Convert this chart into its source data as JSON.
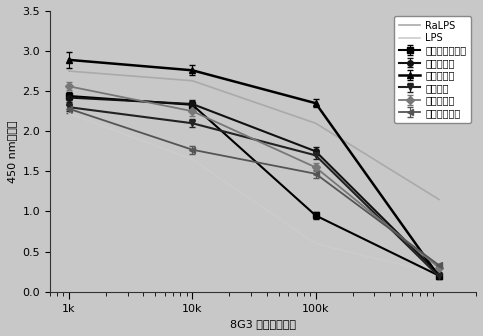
{
  "x_values": [
    1000,
    10000,
    100000,
    1000000
  ],
  "x_tick_positions": [
    1000,
    10000,
    100000
  ],
  "x_tick_labels": [
    "1k",
    "10k",
    "100k"
  ],
  "x_label": "8G3 抗体稀释倍数",
  "y_label": "450 nm吸光值",
  "ylim": [
    0.0,
    3.5
  ],
  "yticks": [
    0.0,
    0.5,
    1.0,
    1.5,
    2.0,
    2.5,
    3.0,
    3.5
  ],
  "background_color": "#c8c8c8",
  "plot_bg_color": "#c8c8c8",
  "series": [
    {
      "label": "甲型副伤寒沙门",
      "color": "#000000",
      "marker": "s",
      "linewidth": 1.5,
      "markersize": 4,
      "values": [
        2.44,
        2.33,
        0.95,
        0.2
      ],
      "errors": [
        0.05,
        0.05,
        0.04,
        0.01
      ]
    },
    {
      "label": "鼠伤寒沙门",
      "color": "#111111",
      "marker": "o",
      "linewidth": 1.5,
      "markersize": 4,
      "values": [
        2.42,
        2.34,
        1.75,
        0.22
      ],
      "errors": [
        0.05,
        0.05,
        0.05,
        0.01
      ]
    },
    {
      "label": "汤普逐沙门",
      "color": "#000000",
      "marker": "^",
      "linewidth": 1.8,
      "markersize": 5,
      "values": [
        2.89,
        2.76,
        2.35,
        0.19
      ],
      "errors": [
        0.1,
        0.06,
        0.05,
        0.01
      ]
    },
    {
      "label": "肠炎沙门",
      "color": "#222222",
      "marker": "v",
      "linewidth": 1.5,
      "markersize": 4,
      "values": [
        2.3,
        2.1,
        1.7,
        0.19
      ],
      "errors": [
        0.05,
        0.05,
        0.05,
        0.01
      ]
    },
    {
      "label": "鸭沙门沙门",
      "color": "#777777",
      "marker": "D",
      "linewidth": 1.3,
      "markersize": 4,
      "values": [
        2.56,
        2.25,
        1.55,
        0.3
      ],
      "errors": [
        0.05,
        0.06,
        0.05,
        0.01
      ]
    },
    {
      "label": "亚利桑那沙门",
      "color": "#555555",
      "marker": "<",
      "linewidth": 1.3,
      "markersize": 4,
      "values": [
        2.28,
        1.77,
        1.47,
        0.33
      ],
      "errors": [
        0.05,
        0.05,
        0.05,
        0.01
      ]
    },
    {
      "label": "RaLPS",
      "color": "#aaaaaa",
      "marker": "None",
      "linewidth": 1.2,
      "markersize": 0,
      "values": [
        2.75,
        2.63,
        2.1,
        1.15
      ],
      "errors": [
        0.0,
        0.0,
        0.0,
        0.0
      ]
    },
    {
      "label": "LPS",
      "color": "#cccccc",
      "marker": "None",
      "linewidth": 1.2,
      "markersize": 0,
      "values": [
        2.22,
        1.65,
        0.6,
        0.22
      ],
      "errors": [
        0.0,
        0.0,
        0.0,
        0.0
      ]
    }
  ],
  "legend_fontsize": 7,
  "axis_fontsize": 8,
  "tick_fontsize": 8
}
